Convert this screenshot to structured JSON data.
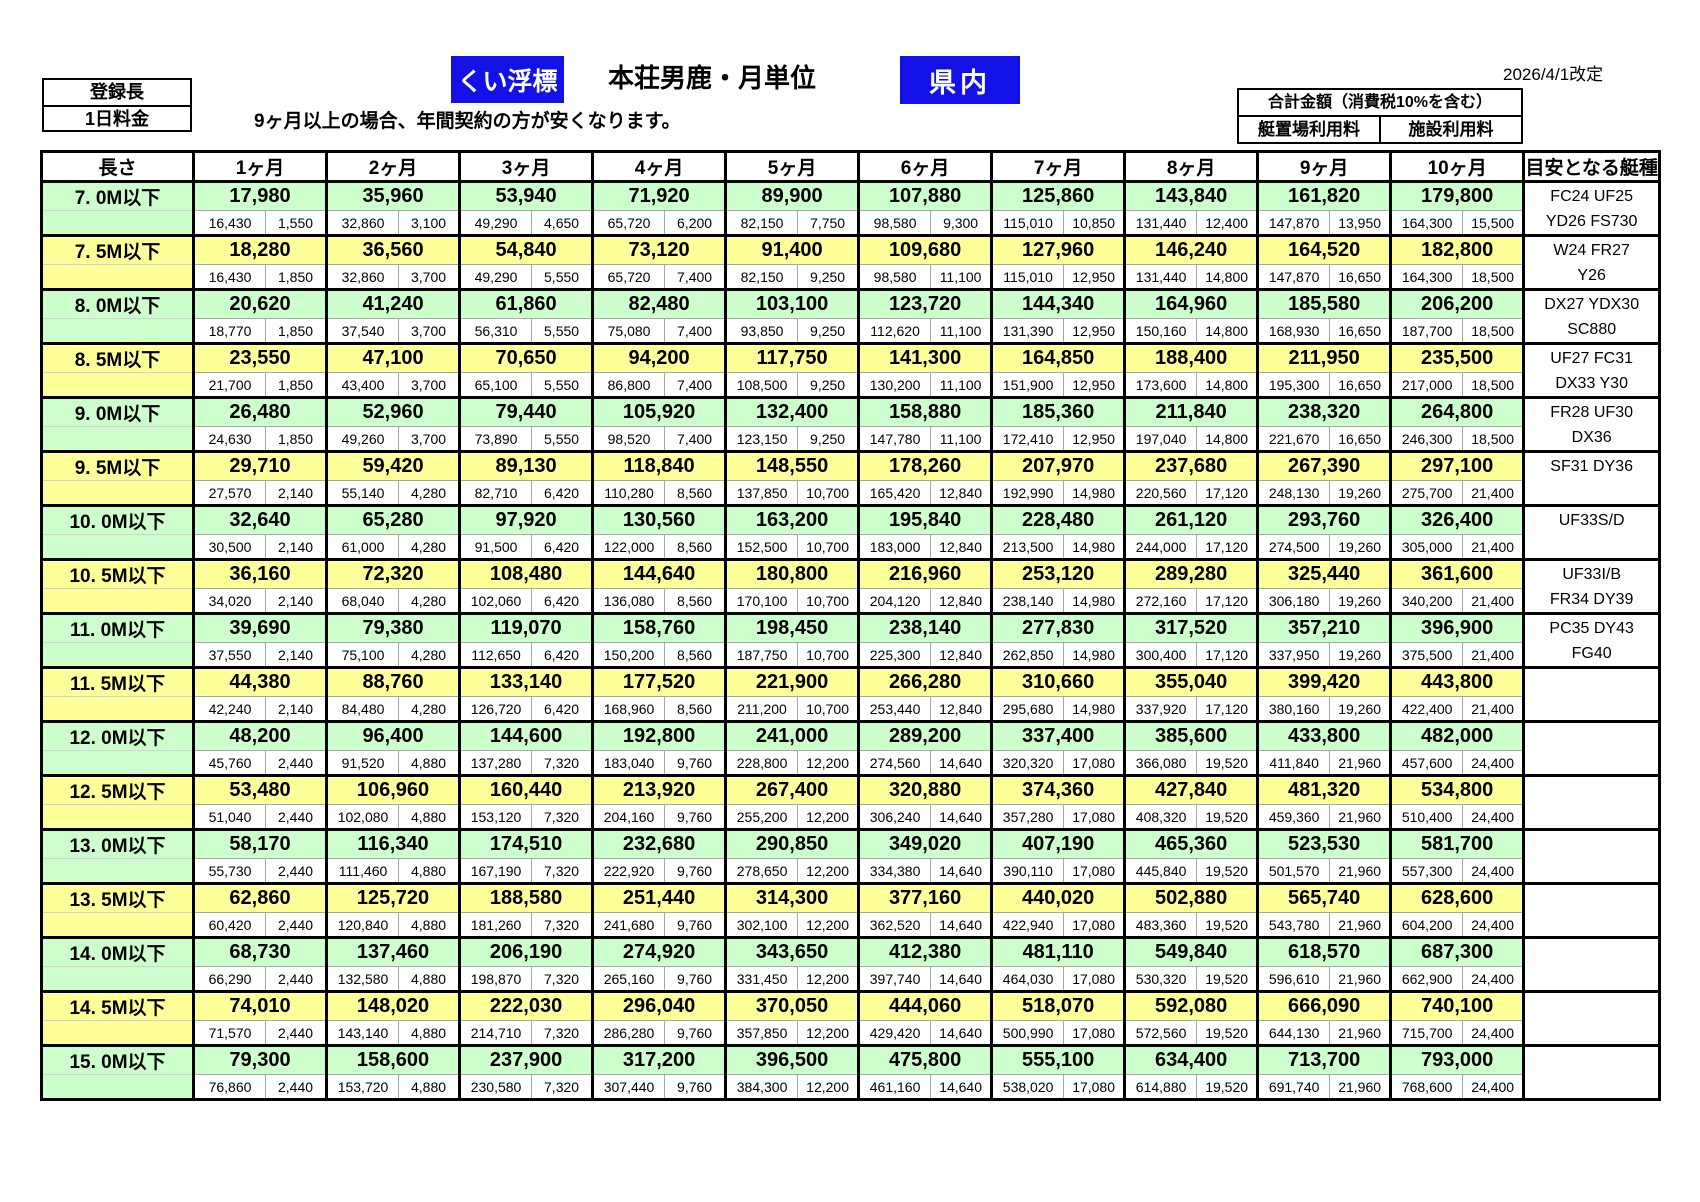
{
  "header": {
    "registered_length_label": "登録長",
    "daily_fee_label": "1日料金",
    "note": "9ヶ月以上の場合、年間契約の方が安くなります。",
    "badge_left": "くい浮標",
    "title": "本荘男鹿・月単位",
    "badge_right": "県内",
    "legend_total": "合計金額（消費税10%を含む）",
    "legend_berth": "艇置場利用料",
    "legend_facility": "施設利用料",
    "revision_date": "2026/4/1改定"
  },
  "colors": {
    "row_green": "#ccffcc",
    "row_yellow": "#ffff99",
    "badge_blue": "#1212e8"
  },
  "table": {
    "col_length": "長さ",
    "months": [
      "1ヶ月",
      "2ヶ月",
      "3ヶ月",
      "4ヶ月",
      "5ヶ月",
      "6ヶ月",
      "7ヶ月",
      "8ヶ月",
      "9ヶ月",
      "10ヶ月"
    ],
    "col_boats": "目安となる艇種",
    "rows": [
      {
        "label": "7. 0M以下",
        "tone": "green",
        "totals": [
          "17,980",
          "35,960",
          "53,940",
          "71,920",
          "89,900",
          "107,880",
          "125,860",
          "143,840",
          "161,820",
          "179,800"
        ],
        "berth": [
          "16,430",
          "32,860",
          "49,290",
          "65,720",
          "82,150",
          "98,580",
          "115,010",
          "131,440",
          "147,870",
          "164,300"
        ],
        "facility": [
          "1,550",
          "3,100",
          "4,650",
          "6,200",
          "7,750",
          "9,300",
          "10,850",
          "12,400",
          "13,950",
          "15,500"
        ],
        "boats": [
          "FC24  UF25",
          "YD26  FS730"
        ]
      },
      {
        "label": "7. 5M以下",
        "tone": "yellow",
        "totals": [
          "18,280",
          "36,560",
          "54,840",
          "73,120",
          "91,400",
          "109,680",
          "127,960",
          "146,240",
          "164,520",
          "182,800"
        ],
        "berth": [
          "16,430",
          "32,860",
          "49,290",
          "65,720",
          "82,150",
          "98,580",
          "115,010",
          "131,440",
          "147,870",
          "164,300"
        ],
        "facility": [
          "1,850",
          "3,700",
          "5,550",
          "7,400",
          "9,250",
          "11,100",
          "12,950",
          "14,800",
          "16,650",
          "18,500"
        ],
        "boats": [
          "W24  FR27",
          "Y26"
        ]
      },
      {
        "label": "8. 0M以下",
        "tone": "green",
        "totals": [
          "20,620",
          "41,240",
          "61,860",
          "82,480",
          "103,100",
          "123,720",
          "144,340",
          "164,960",
          "185,580",
          "206,200"
        ],
        "berth": [
          "18,770",
          "37,540",
          "56,310",
          "75,080",
          "93,850",
          "112,620",
          "131,390",
          "150,160",
          "168,930",
          "187,700"
        ],
        "facility": [
          "1,850",
          "3,700",
          "5,550",
          "7,400",
          "9,250",
          "11,100",
          "12,950",
          "14,800",
          "16,650",
          "18,500"
        ],
        "boats": [
          "DX27  YDX30",
          "SC880"
        ]
      },
      {
        "label": "8. 5M以下",
        "tone": "yellow",
        "totals": [
          "23,550",
          "47,100",
          "70,650",
          "94,200",
          "117,750",
          "141,300",
          "164,850",
          "188,400",
          "211,950",
          "235,500"
        ],
        "berth": [
          "21,700",
          "43,400",
          "65,100",
          "86,800",
          "108,500",
          "130,200",
          "151,900",
          "173,600",
          "195,300",
          "217,000"
        ],
        "facility": [
          "1,850",
          "3,700",
          "5,550",
          "7,400",
          "9,250",
          "11,100",
          "12,950",
          "14,800",
          "16,650",
          "18,500"
        ],
        "boats": [
          "UF27  FC31",
          "DX33  Y30"
        ]
      },
      {
        "label": "9. 0M以下",
        "tone": "green",
        "totals": [
          "26,480",
          "52,960",
          "79,440",
          "105,920",
          "132,400",
          "158,880",
          "185,360",
          "211,840",
          "238,320",
          "264,800"
        ],
        "berth": [
          "24,630",
          "49,260",
          "73,890",
          "98,520",
          "123,150",
          "147,780",
          "172,410",
          "197,040",
          "221,670",
          "246,300"
        ],
        "facility": [
          "1,850",
          "3,700",
          "5,550",
          "7,400",
          "9,250",
          "11,100",
          "12,950",
          "14,800",
          "16,650",
          "18,500"
        ],
        "boats": [
          "FR28  UF30",
          "DX36"
        ]
      },
      {
        "label": "9. 5M以下",
        "tone": "yellow",
        "totals": [
          "29,710",
          "59,420",
          "89,130",
          "118,840",
          "148,550",
          "178,260",
          "207,970",
          "237,680",
          "267,390",
          "297,100"
        ],
        "berth": [
          "27,570",
          "55,140",
          "82,710",
          "110,280",
          "137,850",
          "165,420",
          "192,990",
          "220,560",
          "248,130",
          "275,700"
        ],
        "facility": [
          "2,140",
          "4,280",
          "6,420",
          "8,560",
          "10,700",
          "12,840",
          "14,980",
          "17,120",
          "19,260",
          "21,400"
        ],
        "boats": [
          "SF31  DY36",
          ""
        ]
      },
      {
        "label": "10. 0M以下",
        "tone": "green",
        "totals": [
          "32,640",
          "65,280",
          "97,920",
          "130,560",
          "163,200",
          "195,840",
          "228,480",
          "261,120",
          "293,760",
          "326,400"
        ],
        "berth": [
          "30,500",
          "61,000",
          "91,500",
          "122,000",
          "152,500",
          "183,000",
          "213,500",
          "244,000",
          "274,500",
          "305,000"
        ],
        "facility": [
          "2,140",
          "4,280",
          "6,420",
          "8,560",
          "10,700",
          "12,840",
          "14,980",
          "17,120",
          "19,260",
          "21,400"
        ],
        "boats": [
          "UF33S/D",
          ""
        ]
      },
      {
        "label": "10. 5M以下",
        "tone": "yellow",
        "totals": [
          "36,160",
          "72,320",
          "108,480",
          "144,640",
          "180,800",
          "216,960",
          "253,120",
          "289,280",
          "325,440",
          "361,600"
        ],
        "berth": [
          "34,020",
          "68,040",
          "102,060",
          "136,080",
          "170,100",
          "204,120",
          "238,140",
          "272,160",
          "306,180",
          "340,200"
        ],
        "facility": [
          "2,140",
          "4,280",
          "6,420",
          "8,560",
          "10,700",
          "12,840",
          "14,980",
          "17,120",
          "19,260",
          "21,400"
        ],
        "boats": [
          "UF33I/B",
          "FR34  DY39"
        ]
      },
      {
        "label": "11. 0M以下",
        "tone": "green",
        "totals": [
          "39,690",
          "79,380",
          "119,070",
          "158,760",
          "198,450",
          "238,140",
          "277,830",
          "317,520",
          "357,210",
          "396,900"
        ],
        "berth": [
          "37,550",
          "75,100",
          "112,650",
          "150,200",
          "187,750",
          "225,300",
          "262,850",
          "300,400",
          "337,950",
          "375,500"
        ],
        "facility": [
          "2,140",
          "4,280",
          "6,420",
          "8,560",
          "10,700",
          "12,840",
          "14,980",
          "17,120",
          "19,260",
          "21,400"
        ],
        "boats": [
          "PC35  DY43",
          "FG40"
        ]
      },
      {
        "label": "11. 5M以下",
        "tone": "yellow",
        "totals": [
          "44,380",
          "88,760",
          "133,140",
          "177,520",
          "221,900",
          "266,280",
          "310,660",
          "355,040",
          "399,420",
          "443,800"
        ],
        "berth": [
          "42,240",
          "84,480",
          "126,720",
          "168,960",
          "211,200",
          "253,440",
          "295,680",
          "337,920",
          "380,160",
          "422,400"
        ],
        "facility": [
          "2,140",
          "4,280",
          "6,420",
          "8,560",
          "10,700",
          "12,840",
          "14,980",
          "17,120",
          "19,260",
          "21,400"
        ],
        "boats": [
          "",
          ""
        ]
      },
      {
        "label": "12. 0M以下",
        "tone": "green",
        "totals": [
          "48,200",
          "96,400",
          "144,600",
          "192,800",
          "241,000",
          "289,200",
          "337,400",
          "385,600",
          "433,800",
          "482,000"
        ],
        "berth": [
          "45,760",
          "91,520",
          "137,280",
          "183,040",
          "228,800",
          "274,560",
          "320,320",
          "366,080",
          "411,840",
          "457,600"
        ],
        "facility": [
          "2,440",
          "4,880",
          "7,320",
          "9,760",
          "12,200",
          "14,640",
          "17,080",
          "19,520",
          "21,960",
          "24,400"
        ],
        "boats": [
          "",
          ""
        ]
      },
      {
        "label": "12. 5M以下",
        "tone": "yellow",
        "totals": [
          "53,480",
          "106,960",
          "160,440",
          "213,920",
          "267,400",
          "320,880",
          "374,360",
          "427,840",
          "481,320",
          "534,800"
        ],
        "berth": [
          "51,040",
          "102,080",
          "153,120",
          "204,160",
          "255,200",
          "306,240",
          "357,280",
          "408,320",
          "459,360",
          "510,400"
        ],
        "facility": [
          "2,440",
          "4,880",
          "7,320",
          "9,760",
          "12,200",
          "14,640",
          "17,080",
          "19,520",
          "21,960",
          "24,400"
        ],
        "boats": [
          "",
          ""
        ]
      },
      {
        "label": "13. 0M以下",
        "tone": "green",
        "totals": [
          "58,170",
          "116,340",
          "174,510",
          "232,680",
          "290,850",
          "349,020",
          "407,190",
          "465,360",
          "523,530",
          "581,700"
        ],
        "berth": [
          "55,730",
          "111,460",
          "167,190",
          "222,920",
          "278,650",
          "334,380",
          "390,110",
          "445,840",
          "501,570",
          "557,300"
        ],
        "facility": [
          "2,440",
          "4,880",
          "7,320",
          "9,760",
          "12,200",
          "14,640",
          "17,080",
          "19,520",
          "21,960",
          "24,400"
        ],
        "boats": [
          "",
          ""
        ]
      },
      {
        "label": "13. 5M以下",
        "tone": "yellow",
        "totals": [
          "62,860",
          "125,720",
          "188,580",
          "251,440",
          "314,300",
          "377,160",
          "440,020",
          "502,880",
          "565,740",
          "628,600"
        ],
        "berth": [
          "60,420",
          "120,840",
          "181,260",
          "241,680",
          "302,100",
          "362,520",
          "422,940",
          "483,360",
          "543,780",
          "604,200"
        ],
        "facility": [
          "2,440",
          "4,880",
          "7,320",
          "9,760",
          "12,200",
          "14,640",
          "17,080",
          "19,520",
          "21,960",
          "24,400"
        ],
        "boats": [
          "",
          ""
        ]
      },
      {
        "label": "14. 0M以下",
        "tone": "green",
        "totals": [
          "68,730",
          "137,460",
          "206,190",
          "274,920",
          "343,650",
          "412,380",
          "481,110",
          "549,840",
          "618,570",
          "687,300"
        ],
        "berth": [
          "66,290",
          "132,580",
          "198,870",
          "265,160",
          "331,450",
          "397,740",
          "464,030",
          "530,320",
          "596,610",
          "662,900"
        ],
        "facility": [
          "2,440",
          "4,880",
          "7,320",
          "9,760",
          "12,200",
          "14,640",
          "17,080",
          "19,520",
          "21,960",
          "24,400"
        ],
        "boats": [
          "",
          ""
        ]
      },
      {
        "label": "14. 5M以下",
        "tone": "yellow",
        "totals": [
          "74,010",
          "148,020",
          "222,030",
          "296,040",
          "370,050",
          "444,060",
          "518,070",
          "592,080",
          "666,090",
          "740,100"
        ],
        "berth": [
          "71,570",
          "143,140",
          "214,710",
          "286,280",
          "357,850",
          "429,420",
          "500,990",
          "572,560",
          "644,130",
          "715,700"
        ],
        "facility": [
          "2,440",
          "4,880",
          "7,320",
          "9,760",
          "12,200",
          "14,640",
          "17,080",
          "19,520",
          "21,960",
          "24,400"
        ],
        "boats": [
          "",
          ""
        ]
      },
      {
        "label": "15. 0M以下",
        "tone": "green",
        "totals": [
          "79,300",
          "158,600",
          "237,900",
          "317,200",
          "396,500",
          "475,800",
          "555,100",
          "634,400",
          "713,700",
          "793,000"
        ],
        "berth": [
          "76,860",
          "153,720",
          "230,580",
          "307,440",
          "384,300",
          "461,160",
          "538,020",
          "614,880",
          "691,740",
          "768,600"
        ],
        "facility": [
          "2,440",
          "4,880",
          "7,320",
          "9,760",
          "12,200",
          "14,640",
          "17,080",
          "19,520",
          "21,960",
          "24,400"
        ],
        "boats": [
          "",
          ""
        ]
      }
    ]
  }
}
